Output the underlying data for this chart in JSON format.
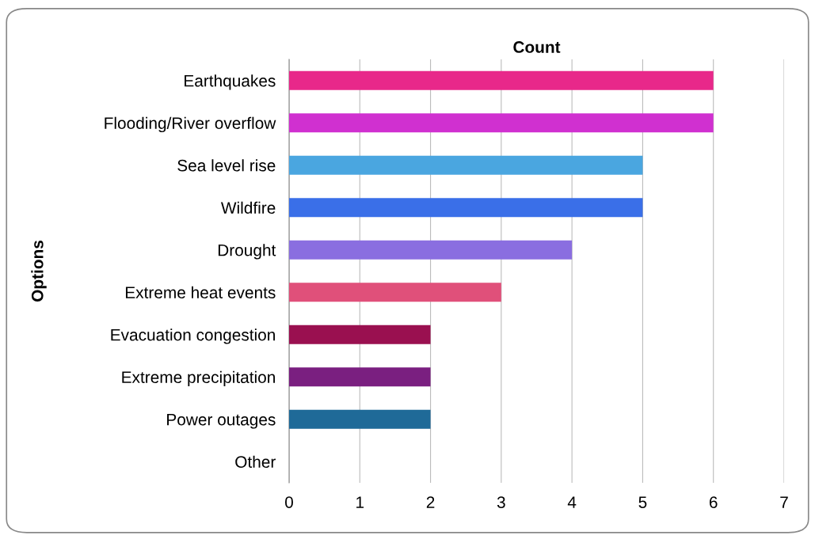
{
  "chart_data": {
    "type": "bar",
    "orientation": "horizontal",
    "title": "Count",
    "ylabel": "Options",
    "categories": [
      "Earthquakes",
      "Flooding/River overflow",
      "Sea level rise",
      "Wildfire",
      "Drought",
      "Extreme heat events",
      "Evacuation congestion",
      "Extreme precipitation",
      "Power outages",
      "Other"
    ],
    "values": [
      6,
      6,
      5,
      5,
      4,
      3,
      2,
      2,
      2,
      0
    ],
    "colors": [
      "#e8288a",
      "#d030d0",
      "#4aa6e0",
      "#3a6fe8",
      "#8a6ee0",
      "#e0507a",
      "#9a1050",
      "#7a1f80",
      "#1f6a98",
      "#808080"
    ],
    "xlim": [
      0,
      7
    ],
    "xticks": [
      0,
      1,
      2,
      3,
      4,
      5,
      6,
      7
    ],
    "grid": "x",
    "legend": false
  }
}
